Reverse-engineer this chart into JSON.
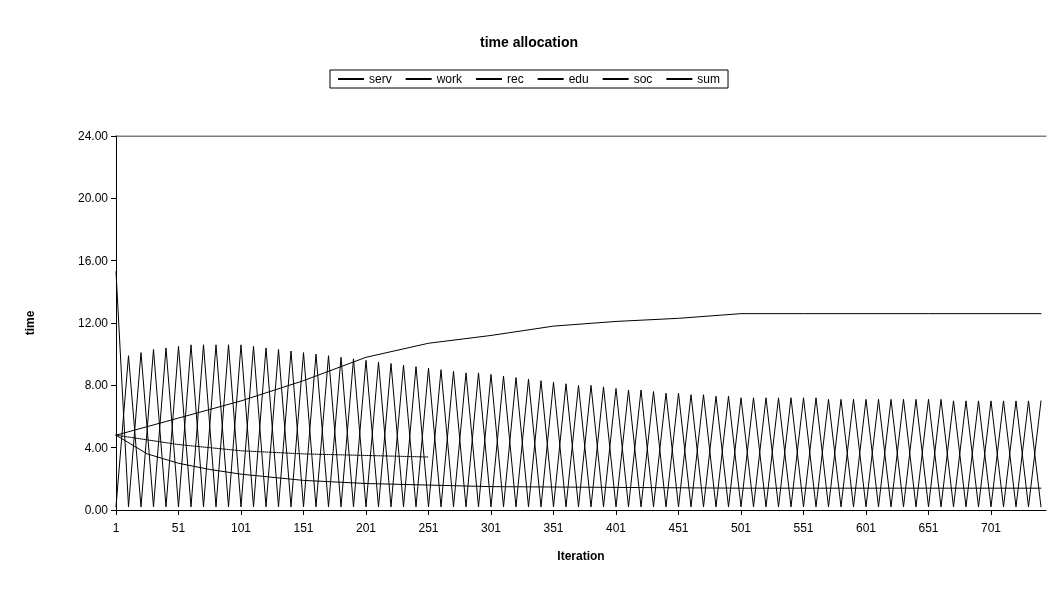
{
  "chart_data": {
    "type": "line",
    "title": "time allocation",
    "xlabel": "Iteration",
    "ylabel": "time",
    "xlim": [
      1,
      745
    ],
    "xticks": [
      1,
      51,
      101,
      151,
      201,
      251,
      301,
      351,
      401,
      451,
      501,
      551,
      601,
      651,
      701
    ],
    "ylim": [
      0,
      24
    ],
    "yticks": [
      {
        "value": 0,
        "label": "0.00"
      },
      {
        "value": 4,
        "label": "4.00"
      },
      {
        "value": 8,
        "label": "8.00"
      },
      {
        "value": 12,
        "label": "12.00"
      },
      {
        "value": 16,
        "label": "16.00"
      },
      {
        "value": 20,
        "label": "20.00"
      },
      {
        "value": 24,
        "label": "24.00"
      }
    ],
    "grid": false,
    "legend": "top",
    "marker": "none",
    "series": [
      {
        "name": "serv",
        "color": "#000000",
        "line_style": "solid",
        "x": [
          1,
          11,
          21,
          31,
          41,
          51,
          61,
          71,
          81,
          91,
          101,
          111,
          121,
          131,
          141,
          151,
          161,
          171,
          181,
          191,
          201,
          211,
          221,
          231,
          241,
          251,
          261,
          271,
          281,
          291,
          301,
          311,
          321,
          331,
          341,
          351,
          361,
          371,
          381,
          391,
          401,
          411,
          421,
          431,
          441,
          451,
          461,
          471,
          481,
          491,
          501,
          511,
          521,
          531,
          541,
          551,
          561,
          571,
          581,
          591,
          601,
          611,
          621,
          631,
          641,
          651,
          661,
          671,
          681,
          691,
          701,
          711,
          721,
          731,
          741
        ],
        "values": [
          15.3,
          0.2,
          10.1,
          0.2,
          10.4,
          0.2,
          10.6,
          0.2,
          10.6,
          0.2,
          10.6,
          0.2,
          10.4,
          0.2,
          10.2,
          0.2,
          10.0,
          0.2,
          9.8,
          0.2,
          9.6,
          0.2,
          9.4,
          0.2,
          9.2,
          0.2,
          9.0,
          0.2,
          8.8,
          0.2,
          8.7,
          0.2,
          8.5,
          0.2,
          8.3,
          0.2,
          8.1,
          0.2,
          8.0,
          0.2,
          7.8,
          0.2,
          7.7,
          0.2,
          7.5,
          0.2,
          7.4,
          0.2,
          7.3,
          0.2,
          7.2,
          0.2,
          7.2,
          0.2,
          7.2,
          0.2,
          7.2,
          0.2,
          7.1,
          0.2,
          7.1,
          0.2,
          7.1,
          0.2,
          7.1,
          0.2,
          7.1,
          0.2,
          7.0,
          0.2,
          7.0,
          0.2,
          7.0,
          0.2,
          7.0
        ]
      },
      {
        "name": "work",
        "color": "#000000",
        "line_style": "solid",
        "x": [
          1,
          51,
          101,
          151,
          201,
          251,
          301,
          351,
          401,
          451,
          501,
          551,
          601,
          651,
          701,
          741
        ],
        "values": [
          4.8,
          5.9,
          7.0,
          8.3,
          9.8,
          10.7,
          11.2,
          11.8,
          12.1,
          12.3,
          12.6,
          12.6,
          12.6,
          12.6,
          12.6,
          12.6
        ]
      },
      {
        "name": "rec",
        "color": "#000000",
        "line_style": "solid",
        "x": [
          1,
          26,
          51,
          76,
          101,
          151,
          201,
          251,
          301,
          401,
          501,
          601,
          741
        ],
        "values": [
          4.8,
          3.6,
          3.0,
          2.6,
          2.3,
          1.9,
          1.7,
          1.6,
          1.5,
          1.45,
          1.4,
          1.4,
          1.4
        ]
      },
      {
        "name": "edu",
        "color": "#000000",
        "line_style": "dotted",
        "x": [
          1,
          51,
          101,
          151,
          201,
          251
        ],
        "values": [
          4.8,
          4.2,
          3.8,
          3.6,
          3.5,
          3.4
        ]
      },
      {
        "name": "soc",
        "color": "#000000",
        "line_style": "solid",
        "x": [
          1,
          11,
          21,
          31,
          41,
          51,
          61,
          71,
          81,
          91,
          101,
          111,
          121,
          131,
          141,
          151,
          161,
          171,
          181,
          191,
          201,
          211,
          221,
          231,
          241,
          251,
          261,
          271,
          281,
          291,
          301,
          311,
          321,
          331,
          341,
          351,
          361,
          371,
          381,
          391,
          401,
          411,
          421,
          431,
          441,
          451,
          461,
          471,
          481,
          491,
          501,
          511,
          521,
          531,
          541,
          551,
          561,
          571,
          581,
          591,
          601,
          611,
          621,
          631,
          641,
          651,
          661,
          671,
          681,
          691,
          701,
          711,
          721,
          731,
          741
        ],
        "values": [
          0.2,
          9.9,
          0.2,
          10.3,
          0.2,
          10.5,
          0.2,
          10.6,
          0.2,
          10.6,
          0.2,
          10.5,
          0.2,
          10.3,
          0.2,
          10.1,
          0.2,
          9.9,
          0.2,
          9.7,
          0.2,
          9.5,
          0.2,
          9.3,
          0.2,
          9.1,
          0.2,
          8.9,
          0.2,
          8.8,
          0.2,
          8.6,
          0.2,
          8.4,
          0.2,
          8.2,
          0.2,
          8.0,
          0.2,
          7.9,
          0.2,
          7.7,
          0.2,
          7.6,
          0.2,
          7.5,
          0.2,
          7.4,
          0.2,
          7.3,
          0.2,
          7.2,
          0.2,
          7.2,
          0.2,
          7.2,
          0.2,
          7.1,
          0.2,
          7.1,
          0.2,
          7.1,
          0.2,
          7.1,
          0.2,
          7.1,
          0.2,
          7.0,
          0.2,
          7.0,
          0.2,
          7.0,
          0.2,
          7.0,
          0.2
        ]
      },
      {
        "name": "sum",
        "color": "#000000",
        "line_style": "solid",
        "x": [
          1,
          745
        ],
        "values": [
          24,
          24
        ]
      }
    ]
  }
}
